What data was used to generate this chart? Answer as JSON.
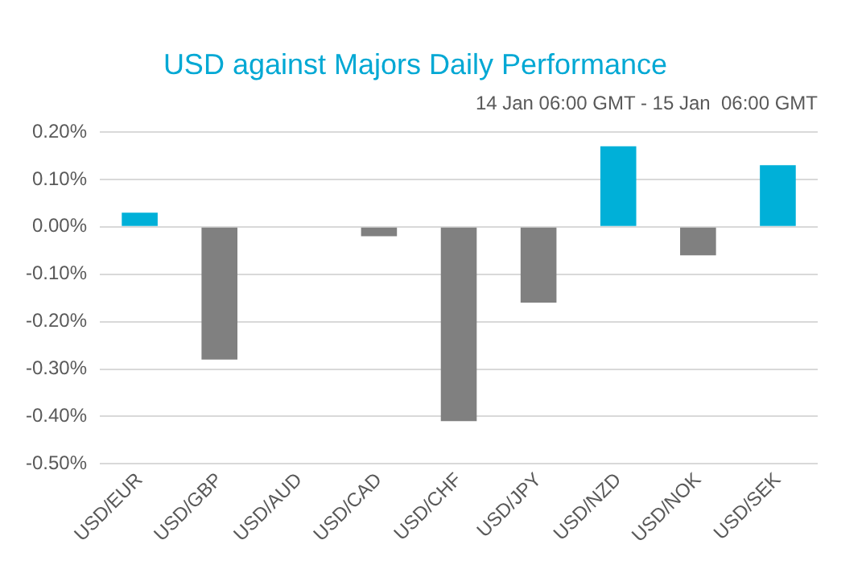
{
  "chart_data": {
    "type": "bar",
    "title": "USD against Majors Daily Performance",
    "subtitle": "14 Jan 06:00 GMT - 15 Jan  06:00 GMT",
    "categories": [
      "USD/EUR",
      "USD/GBP",
      "USD/AUD",
      "USD/CAD",
      "USD/CHF",
      "USD/JPY",
      "USD/NZD",
      "USD/NOK",
      "USD/SEK"
    ],
    "values": [
      0.03,
      -0.28,
      0.0,
      -0.02,
      -0.41,
      -0.16,
      0.17,
      -0.06,
      0.13
    ],
    "colors": [
      "#00b0d8",
      "#808080",
      "#808080",
      "#808080",
      "#808080",
      "#808080",
      "#00b0d8",
      "#808080",
      "#00b0d8"
    ],
    "ylim": [
      -0.5,
      0.2
    ],
    "yticks": [
      {
        "value": -0.5,
        "label": "-0.50%"
      },
      {
        "value": -0.4,
        "label": "-0.40%"
      },
      {
        "value": -0.3,
        "label": "-0.30%"
      },
      {
        "value": -0.2,
        "label": "-0.20%"
      },
      {
        "value": -0.1,
        "label": "-0.10%"
      },
      {
        "value": 0,
        "label": "0.00%"
      },
      {
        "value": 0.1,
        "label": "0.10%"
      },
      {
        "value": 0.2,
        "label": "0.20%"
      }
    ],
    "grid": "y",
    "legend": false
  }
}
